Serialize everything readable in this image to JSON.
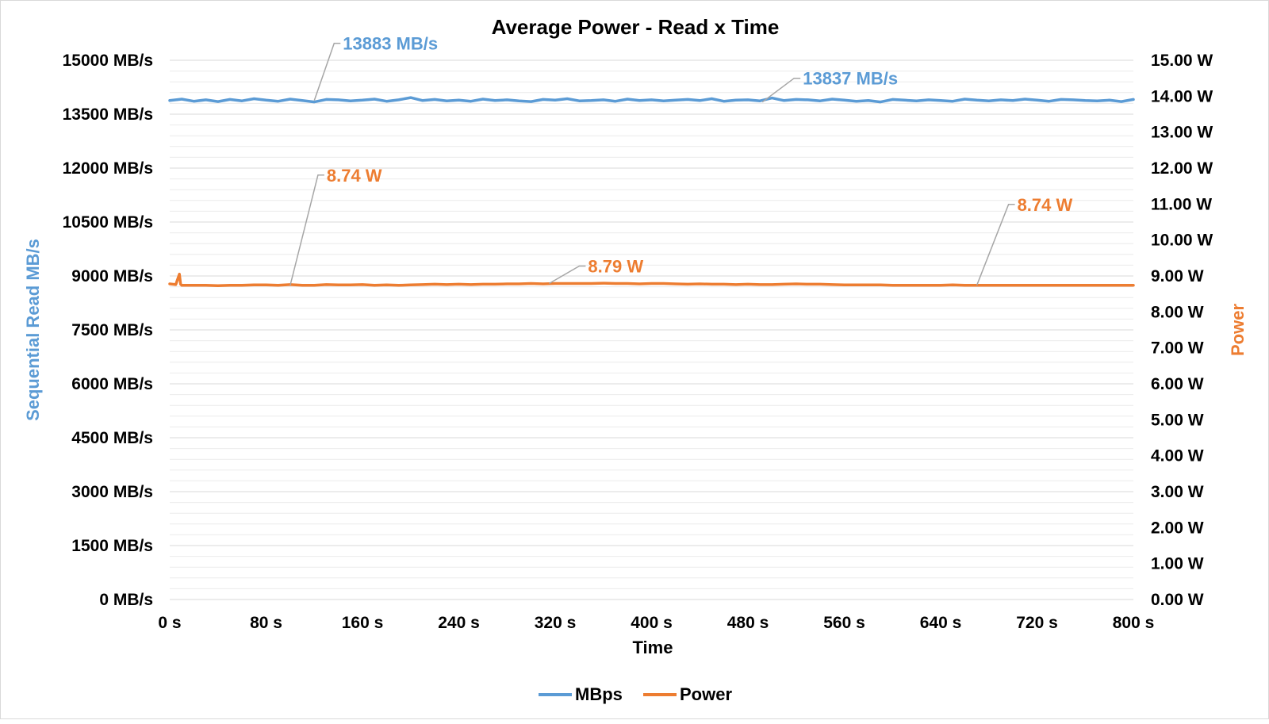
{
  "chart_data": {
    "type": "line",
    "title": "Average Power - Read x Time",
    "xlabel": "Time",
    "ylabel_left": "Sequential Read MB/s",
    "ylabel_right": "Power",
    "x_range": [
      0,
      800
    ],
    "x_ticks": [
      "0 s",
      "80 s",
      "160 s",
      "240 s",
      "320 s",
      "400 s",
      "480 s",
      "560 s",
      "640 s",
      "720 s",
      "800 s"
    ],
    "y_left_range": [
      0,
      15000
    ],
    "y_left_ticks": [
      "0 MB/s",
      "1500 MB/s",
      "3000 MB/s",
      "4500 MB/s",
      "6000 MB/s",
      "7500 MB/s",
      "9000 MB/s",
      "10500 MB/s",
      "12000 MB/s",
      "13500 MB/s",
      "15000 MB/s"
    ],
    "y_right_range": [
      0,
      15
    ],
    "y_right_ticks": [
      "0.00 W",
      "1.00 W",
      "2.00 W",
      "3.00 W",
      "4.00 W",
      "5.00 W",
      "6.00 W",
      "7.00 W",
      "8.00 W",
      "9.00 W",
      "10.00 W",
      "11.00 W",
      "12.00 W",
      "13.00 W",
      "14.00 W",
      "15.00 W"
    ],
    "grid": true,
    "legend_position": "bottom",
    "series": [
      {
        "name": "MBps",
        "axis": "left",
        "color": "#5b9bd5",
        "x": [
          0,
          10,
          20,
          30,
          40,
          50,
          60,
          70,
          80,
          90,
          100,
          110,
          120,
          130,
          140,
          150,
          160,
          170,
          180,
          190,
          200,
          210,
          220,
          230,
          240,
          250,
          260,
          270,
          280,
          290,
          300,
          310,
          320,
          330,
          340,
          350,
          360,
          370,
          380,
          390,
          400,
          410,
          420,
          430,
          440,
          450,
          460,
          470,
          480,
          490,
          500,
          510,
          520,
          530,
          540,
          550,
          560,
          570,
          580,
          590,
          600,
          610,
          620,
          630,
          640,
          650,
          660,
          670,
          680,
          690,
          700,
          710,
          720,
          730,
          740,
          750,
          760,
          770,
          780,
          790,
          800
        ],
        "y": [
          13880,
          13920,
          13860,
          13900,
          13850,
          13910,
          13870,
          13930,
          13890,
          13860,
          13920,
          13880,
          13840,
          13910,
          13900,
          13870,
          13890,
          13920,
          13860,
          13900,
          13960,
          13880,
          13910,
          13870,
          13890,
          13860,
          13920,
          13880,
          13900,
          13870,
          13850,
          13910,
          13890,
          13930,
          13870,
          13880,
          13900,
          13860,
          13920,
          13880,
          13900,
          13870,
          13890,
          13910,
          13880,
          13930,
          13860,
          13890,
          13900,
          13870,
          13950,
          13880,
          13910,
          13900,
          13870,
          13920,
          13890,
          13860,
          13880,
          13840,
          13910,
          13890,
          13870,
          13900,
          13880,
          13860,
          13920,
          13890,
          13870,
          13900,
          13880,
          13920,
          13890,
          13860,
          13910,
          13900,
          13880,
          13870,
          13890,
          13850,
          13910
        ]
      },
      {
        "name": "Power",
        "axis": "right",
        "color": "#ed7d31",
        "x": [
          0,
          5,
          8,
          9,
          10,
          20,
          30,
          40,
          50,
          60,
          70,
          80,
          90,
          100,
          110,
          120,
          130,
          140,
          150,
          160,
          170,
          180,
          190,
          200,
          210,
          220,
          230,
          240,
          250,
          260,
          270,
          280,
          290,
          300,
          310,
          320,
          330,
          340,
          350,
          360,
          370,
          380,
          390,
          400,
          410,
          420,
          430,
          440,
          450,
          460,
          470,
          480,
          490,
          500,
          510,
          520,
          530,
          540,
          550,
          560,
          570,
          580,
          590,
          600,
          610,
          620,
          630,
          640,
          650,
          660,
          670,
          680,
          690,
          700,
          710,
          720,
          730,
          740,
          750,
          760,
          770,
          780,
          790,
          800
        ],
        "y": [
          8.78,
          8.76,
          9.05,
          8.77,
          8.74,
          8.74,
          8.74,
          8.73,
          8.74,
          8.74,
          8.75,
          8.75,
          8.74,
          8.76,
          8.74,
          8.74,
          8.76,
          8.75,
          8.75,
          8.76,
          8.74,
          8.75,
          8.74,
          8.75,
          8.76,
          8.77,
          8.76,
          8.77,
          8.76,
          8.77,
          8.77,
          8.78,
          8.78,
          8.79,
          8.78,
          8.79,
          8.79,
          8.79,
          8.79,
          8.8,
          8.79,
          8.79,
          8.78,
          8.79,
          8.79,
          8.78,
          8.77,
          8.78,
          8.77,
          8.77,
          8.76,
          8.77,
          8.76,
          8.76,
          8.77,
          8.78,
          8.77,
          8.77,
          8.76,
          8.75,
          8.75,
          8.75,
          8.75,
          8.74,
          8.74,
          8.74,
          8.74,
          8.74,
          8.75,
          8.74,
          8.74,
          8.74,
          8.74,
          8.74,
          8.74,
          8.74,
          8.74,
          8.74,
          8.74,
          8.74,
          8.74,
          8.74,
          8.74,
          8.74
        ]
      }
    ],
    "annotations": [
      {
        "text": "13883 MB/s",
        "series": "MBps",
        "x": 120,
        "y": 13883
      },
      {
        "text": "13837 MB/s",
        "series": "MBps",
        "x": 492,
        "y": 13837
      },
      {
        "text": "8.74 W",
        "series": "Power",
        "x": 100,
        "y": 8.74
      },
      {
        "text": "8.79 W",
        "series": "Power",
        "x": 315,
        "y": 8.79
      },
      {
        "text": "8.74 W",
        "series": "Power",
        "x": 670,
        "y": 8.74
      }
    ]
  }
}
